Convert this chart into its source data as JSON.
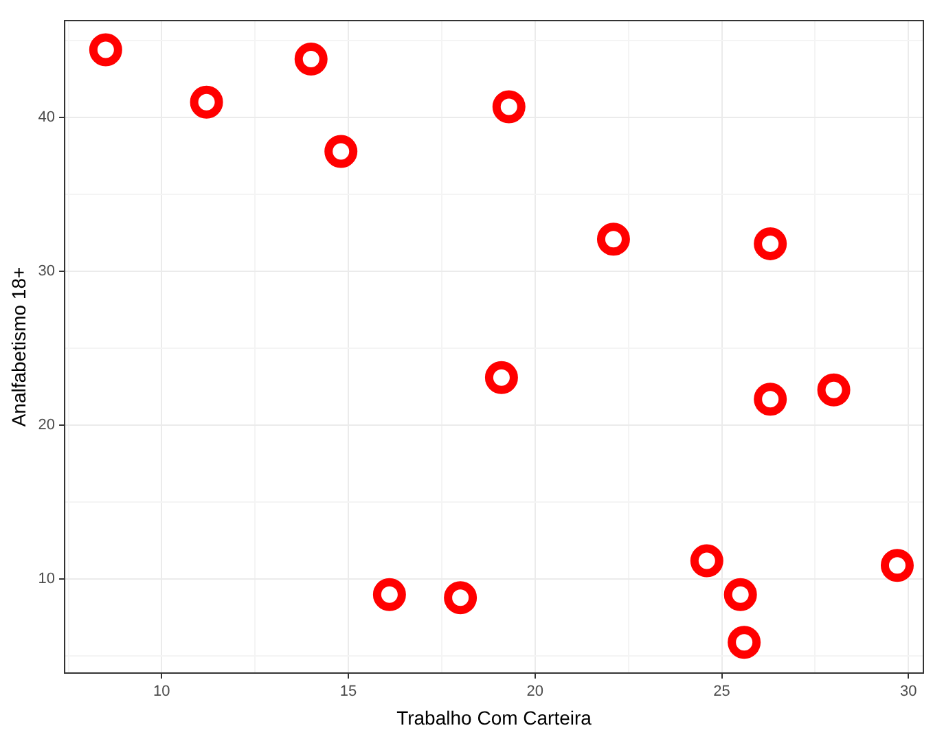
{
  "chart_data": {
    "type": "scatter",
    "xlabel": "Trabalho Com Carteira",
    "ylabel": "Analfabetismo 18+",
    "x": [
      8.5,
      11.2,
      14.0,
      14.8,
      19.3,
      22.1,
      26.3,
      19.1,
      26.3,
      28.0,
      24.6,
      25.5,
      25.6,
      29.7,
      16.1,
      18.0
    ],
    "series": [
      {
        "color": "#ff0000",
        "values": [
          44.4,
          41.0,
          43.8,
          37.8,
          40.7,
          32.1,
          31.8,
          23.1,
          21.7,
          22.3,
          11.2,
          9.0,
          5.9,
          10.9,
          9.0,
          8.8
        ]
      }
    ],
    "xlim": [
      7.4,
      30.4
    ],
    "ylim": [
      3.9,
      46.3
    ],
    "xticks": [
      {
        "value": 7.5,
        "label": null
      },
      10,
      {
        "value": 12.5,
        "label": null
      },
      15,
      {
        "value": 17.5,
        "label": null
      },
      20,
      {
        "value": 22.5,
        "label": null
      },
      25,
      {
        "value": 27.5,
        "label": null
      },
      30
    ],
    "yticks": [
      {
        "value": 5,
        "label": null
      },
      10,
      {
        "value": 15,
        "label": null
      },
      20,
      {
        "value": 25,
        "label": null
      },
      30,
      {
        "value": 35,
        "label": null
      },
      40,
      {
        "value": 45,
        "label": null
      }
    ],
    "grid": true,
    "marker": "circle",
    "legend": false
  }
}
